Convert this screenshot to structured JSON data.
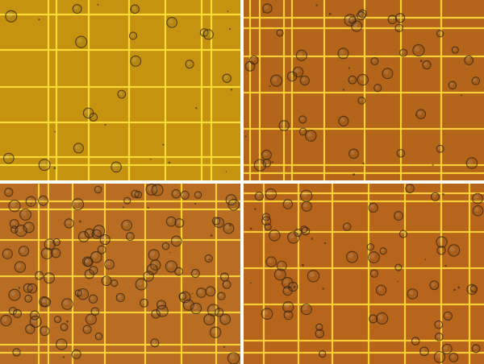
{
  "image_kind": "four-panel brightfield micrographs of cells on a hemocytometer counting grid",
  "panels": [
    {
      "id": "top-left",
      "background": "#cf9a12",
      "grid_color": "#ffe23a",
      "cell_density": "sparse"
    },
    {
      "id": "top-right",
      "background": "#bb6a1c",
      "grid_color": "#ffd83a",
      "cell_density": "medium"
    },
    {
      "id": "bottom-left",
      "background": "#c07224",
      "grid_color": "#ffd83a",
      "cell_density": "dense"
    },
    {
      "id": "bottom-right",
      "background": "#c06a1e",
      "grid_color": "#ffd83a",
      "cell_density": "medium"
    }
  ]
}
